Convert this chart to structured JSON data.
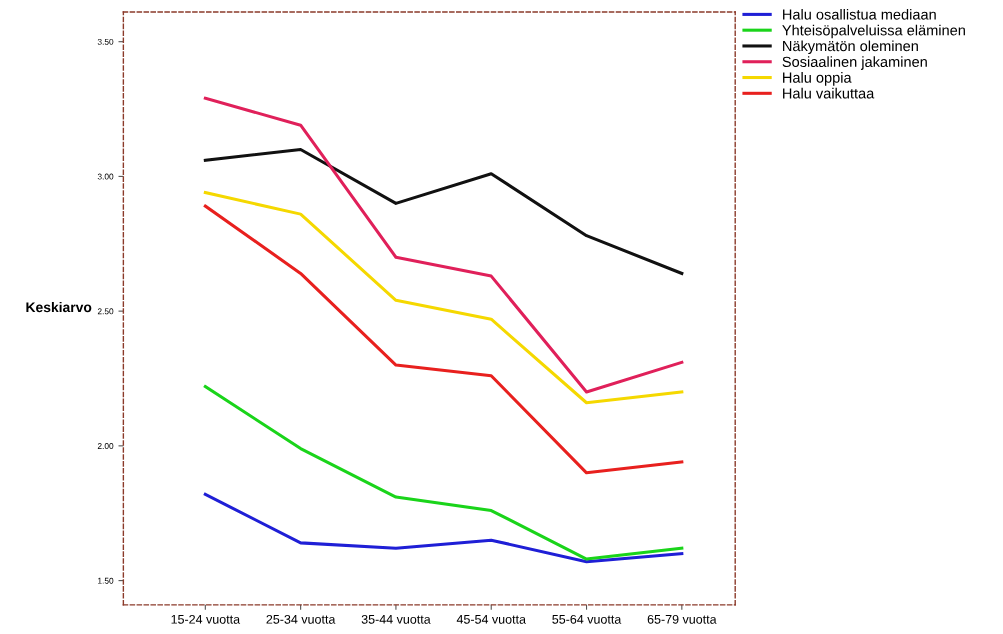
{
  "chart_data": {
    "type": "line",
    "ylabel": "Keskiarvo",
    "categories": [
      "15-24 vuotta",
      "25-34 vuotta",
      "35-44 vuotta",
      "45-54 vuotta",
      "55-64 vuotta",
      "65-79 vuotta"
    ],
    "ylim": [
      1.41,
      3.61
    ],
    "yticks": [
      {
        "value": 1.5,
        "label": "1.50"
      },
      {
        "value": 2.0,
        "label": "2.00"
      },
      {
        "value": 2.5,
        "label": "2.50"
      },
      {
        "value": 3.0,
        "label": "3.00"
      },
      {
        "value": 3.5,
        "label": "3.50"
      }
    ],
    "grid": false,
    "legend": "top right",
    "marker": "none",
    "line_style": "solid",
    "series": [
      {
        "name": "Halu osallistua mediaan",
        "color": "#1f1fd6",
        "values": [
          1.82,
          1.64,
          1.62,
          1.65,
          1.57,
          1.6
        ]
      },
      {
        "name": "Yhteisöpalveluissa eläminen",
        "color": "#1ad41a",
        "values": [
          2.22,
          1.99,
          1.81,
          1.76,
          1.58,
          1.62
        ]
      },
      {
        "name": "Näkymätön oleminen",
        "color": "#111111",
        "values": [
          3.06,
          3.1,
          2.9,
          3.01,
          2.78,
          2.64
        ]
      },
      {
        "name": "Sosiaalinen jakaminen",
        "color": "#e0205a",
        "values": [
          3.29,
          3.19,
          2.7,
          2.63,
          2.2,
          2.31
        ]
      },
      {
        "name": "Halu oppia",
        "color": "#f5d800",
        "values": [
          2.94,
          2.86,
          2.54,
          2.47,
          2.16,
          2.2
        ]
      },
      {
        "name": "Halu vaikuttaa",
        "color": "#e8201e",
        "values": [
          2.89,
          2.64,
          2.3,
          2.26,
          1.9,
          1.94
        ]
      }
    ]
  }
}
